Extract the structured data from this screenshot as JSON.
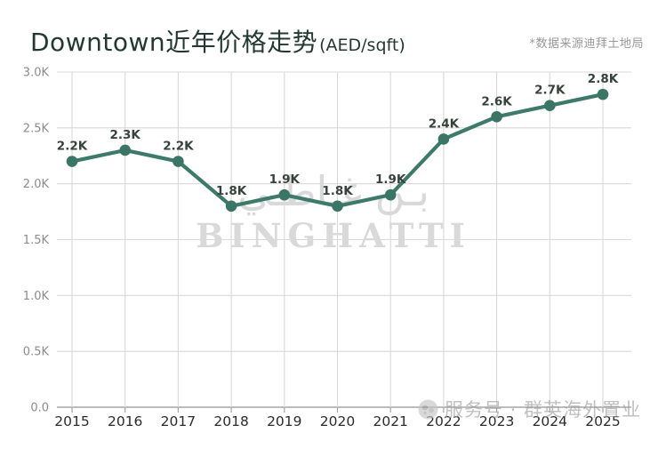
{
  "header": {
    "title_main": "Downtown近年价格走势",
    "title_unit": "(AED/sqft)",
    "source_note": "*数据来源迪拜土地局"
  },
  "watermark": {
    "arabic": "بـن غـاطـي",
    "brand": "BINGHATTI"
  },
  "footer": {
    "channel_label": "服务号 · 群英海外置业"
  },
  "colors": {
    "line": "#3d7a69",
    "marker": "#3a7566",
    "title": "#233831",
    "data_label": "#37423c",
    "x_label": "#2c2c2c",
    "y_label": "#8c8c8c",
    "grid": "#d9d9d9",
    "axis": "#a6a6a6",
    "tick": "#a3a3a3",
    "note": "#979797",
    "watermark": "#d9d9d9"
  },
  "chart_data": {
    "type": "line",
    "title": "Downtown近年价格走势 (AED/sqft)",
    "categories": [
      "2015",
      "2016",
      "2017",
      "2018",
      "2019",
      "2020",
      "2021",
      "2022",
      "2023",
      "2024",
      "2025"
    ],
    "values": [
      2200,
      2300,
      2200,
      1800,
      1900,
      1800,
      1900,
      2400,
      2600,
      2700,
      2800
    ],
    "point_labels": [
      "2.2K",
      "2.3K",
      "2.2K",
      "1.8K",
      "1.9K",
      "1.8K",
      "1.9K",
      "2.4K",
      "2.6K",
      "2.7K",
      "2.8K"
    ],
    "xlabel": "",
    "ylabel": "",
    "ylim": [
      0,
      3000
    ],
    "ytick_values": [
      0,
      500,
      1000,
      1500,
      2000,
      2500,
      3000
    ],
    "ytick_labels": [
      "0.0",
      "0.5K",
      "1.0K",
      "1.5K",
      "2.0K",
      "2.5K",
      "3.0K"
    ],
    "grid": true,
    "legend": "none"
  }
}
